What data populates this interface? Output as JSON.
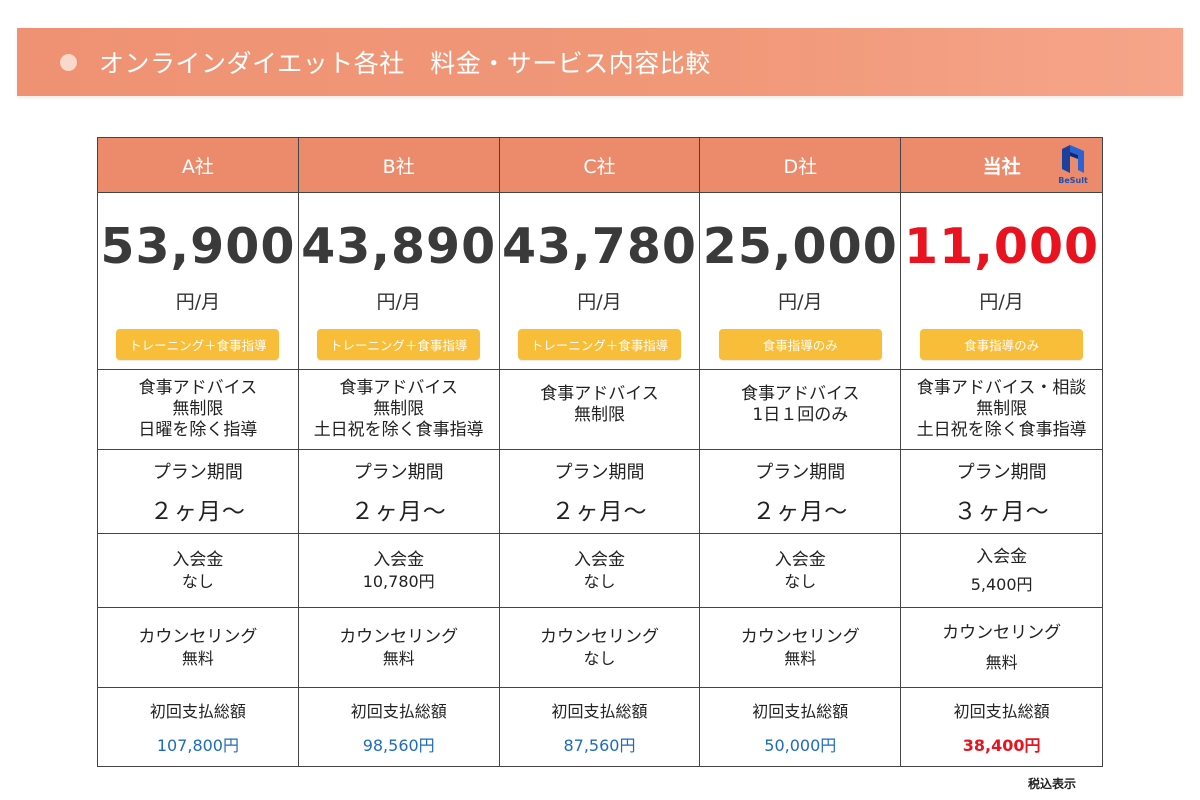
{
  "title": "オンラインダイエット各社　料金・サービス内容比較",
  "brand_logo_text": "BeSult",
  "companies": [
    {
      "name": "A社",
      "price": "53,900",
      "unit": "円/月",
      "badge": "トレーニング＋食事指導",
      "advice": [
        "食事アドバイス",
        "無制限",
        "日曜を除く指導"
      ],
      "plan_label": "プラン期間",
      "plan_value": "２ヶ月〜",
      "fee_label": "入会金",
      "fee_value": "なし",
      "counsel_label": "カウンセリング",
      "counsel_value": "無料",
      "total_label": "初回支払総額",
      "total_value": "107,800円"
    },
    {
      "name": "B社",
      "price": "43,890",
      "unit": "円/月",
      "badge": "トレーニング＋食事指導",
      "advice": [
        "食事アドバイス",
        "無制限",
        "土日祝を除く食事指導"
      ],
      "plan_label": "プラン期間",
      "plan_value": "２ヶ月〜",
      "fee_label": "入会金",
      "fee_value": "10,780円",
      "counsel_label": "カウンセリング",
      "counsel_value": "無料",
      "total_label": "初回支払総額",
      "total_value": "98,560円"
    },
    {
      "name": "C社",
      "price": "43,780",
      "unit": "円/月",
      "badge": "トレーニング＋食事指導",
      "advice": [
        "食事アドバイス",
        "無制限"
      ],
      "plan_label": "プラン期間",
      "plan_value": "２ヶ月〜",
      "fee_label": "入会金",
      "fee_value": "なし",
      "counsel_label": "カウンセリング",
      "counsel_value": "なし",
      "total_label": "初回支払総額",
      "total_value": "87,560円"
    },
    {
      "name": "D社",
      "price": "25,000",
      "unit": "円/月",
      "badge": "食事指導のみ",
      "advice": [
        "食事アドバイス",
        "1日１回のみ"
      ],
      "plan_label": "プラン期間",
      "plan_value": "２ヶ月〜",
      "fee_label": "入会金",
      "fee_value": "なし",
      "counsel_label": "カウンセリング",
      "counsel_value": "無料",
      "total_label": "初回支払総額",
      "total_value": "50,000円"
    },
    {
      "name": "当社",
      "price": "11,000",
      "unit": "円/月",
      "badge": "食事指導のみ",
      "advice": [
        "食事アドバイス・相談",
        "無制限",
        "土日祝を除く食事指導"
      ],
      "plan_label": "プラン期間",
      "plan_value": "３ヶ月〜",
      "fee_label": "入会金",
      "fee_value": "5,400円",
      "counsel_label": "カウンセリング",
      "counsel_value": "無料",
      "total_label": "初回支払総額",
      "total_value": "38,400円"
    }
  ],
  "note": "税込表示",
  "colors": {
    "banner": "#ef9274",
    "header": "#ec8a6c",
    "badge": "#f8be3a",
    "highlight_price": "#e8131e",
    "total_value": "#1e6bbd"
  }
}
